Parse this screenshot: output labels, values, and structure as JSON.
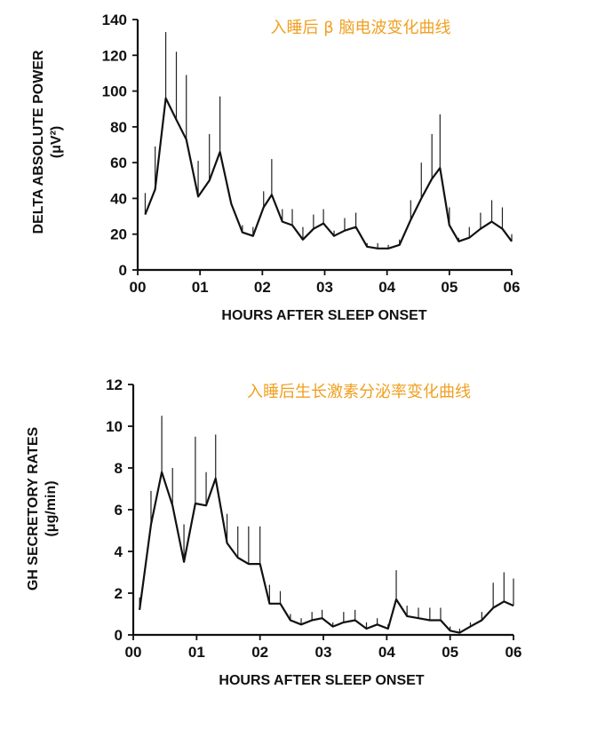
{
  "chart_data": [
    {
      "type": "line",
      "title": "入睡后 β 脑电波变化曲线",
      "xlabel": "HOURS AFTER SLEEP ONSET",
      "ylabel": "DELTA ABSOLUTE POWER",
      "ylabel_unit": "(μV²)",
      "x_tick_labels": [
        "00",
        "01",
        "02",
        "03",
        "04",
        "05",
        "06"
      ],
      "y_ticks": [
        0,
        20,
        40,
        60,
        80,
        100,
        120,
        140
      ],
      "xlim": [
        0,
        6
      ],
      "ylim": [
        0,
        140
      ],
      "grid": false,
      "series": [
        {
          "x": [
            0.12,
            0.28,
            0.45,
            0.62,
            0.78,
            0.97,
            1.15,
            1.32,
            1.5,
            1.68,
            1.85,
            2.02,
            2.15,
            2.32,
            2.48,
            2.65,
            2.82,
            2.98,
            3.15,
            3.32,
            3.5,
            3.68,
            3.85,
            4.02,
            4.2,
            4.38,
            4.55,
            4.72,
            4.85,
            5.0,
            5.15,
            5.32,
            5.5,
            5.68,
            5.85,
            6.0
          ],
          "y": [
            31,
            45,
            96,
            84,
            73,
            41,
            50,
            66,
            37,
            21,
            19,
            35,
            42,
            27,
            25,
            17,
            23,
            26,
            19,
            22,
            24,
            13,
            12,
            12,
            14,
            28,
            40,
            51,
            57,
            25,
            16,
            18,
            23,
            27,
            23,
            16
          ],
          "error_upper": [
            43,
            69,
            133,
            122,
            109,
            61,
            76,
            97,
            37,
            25,
            24,
            44,
            62,
            34,
            34,
            24,
            31,
            34,
            22,
            29,
            32,
            15,
            15,
            14,
            17,
            39,
            60,
            76,
            87,
            35,
            18,
            24,
            32,
            39,
            35,
            20
          ]
        }
      ]
    },
    {
      "type": "line",
      "title": "入睡后生长激素分泌率变化曲线",
      "xlabel": "HOURS AFTER SLEEP ONSET",
      "ylabel": "GH SECRETORY RATES",
      "ylabel_unit": "(μg/min)",
      "x_tick_labels": [
        "00",
        "01",
        "02",
        "03",
        "04",
        "05",
        "06"
      ],
      "y_ticks": [
        0,
        2,
        4,
        6,
        8,
        10,
        12
      ],
      "xlim": [
        0,
        6
      ],
      "ylim": [
        0,
        12
      ],
      "grid": false,
      "series": [
        {
          "x": [
            0.1,
            0.28,
            0.45,
            0.62,
            0.8,
            0.98,
            1.15,
            1.3,
            1.48,
            1.65,
            1.82,
            2.0,
            2.15,
            2.32,
            2.48,
            2.65,
            2.82,
            2.98,
            3.15,
            3.32,
            3.5,
            3.68,
            3.85,
            4.02,
            4.15,
            4.32,
            4.5,
            4.68,
            4.85,
            5.0,
            5.15,
            5.32,
            5.5,
            5.68,
            5.85,
            6.0
          ],
          "y": [
            1.2,
            5.3,
            7.8,
            6.2,
            3.5,
            6.3,
            6.2,
            7.5,
            4.4,
            3.7,
            3.4,
            3.4,
            1.5,
            1.5,
            0.7,
            0.5,
            0.7,
            0.8,
            0.4,
            0.6,
            0.7,
            0.3,
            0.5,
            0.3,
            1.7,
            0.9,
            0.8,
            0.7,
            0.7,
            0.2,
            0.1,
            0.4,
            0.7,
            1.3,
            1.6,
            1.4
          ],
          "error_upper": [
            1.8,
            6.9,
            10.5,
            8.0,
            5.3,
            9.5,
            7.8,
            9.6,
            5.8,
            5.2,
            5.2,
            5.2,
            2.4,
            2.1,
            1.0,
            0.8,
            1.1,
            1.2,
            0.6,
            1.1,
            1.2,
            0.6,
            0.8,
            0.5,
            3.1,
            1.4,
            1.3,
            1.3,
            1.3,
            0.4,
            0.3,
            0.6,
            1.1,
            2.5,
            3.0,
            2.7
          ]
        }
      ]
    }
  ]
}
